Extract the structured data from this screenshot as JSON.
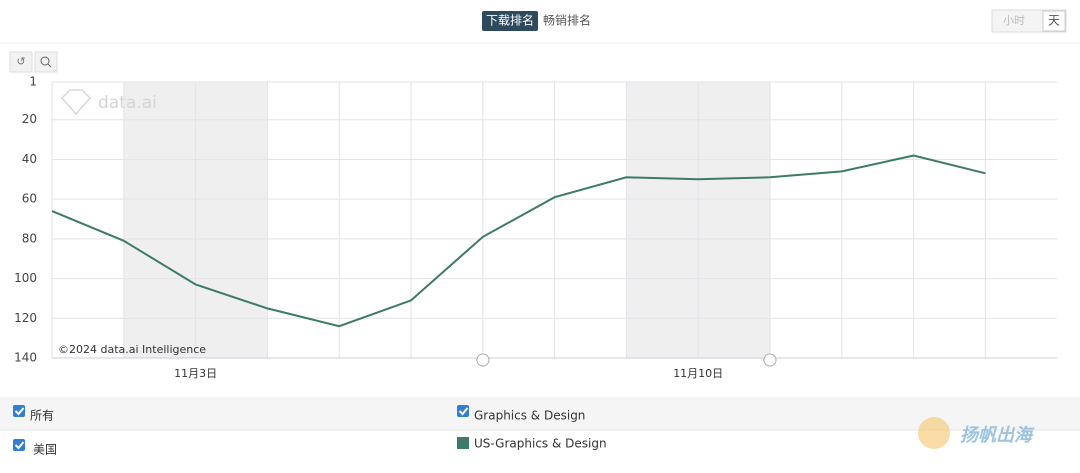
{
  "tabs": [
    "下载排名",
    "畅销排名"
  ],
  "granularity": [
    "小时",
    "天"
  ],
  "watermark": "data.ai",
  "filters": {
    "country_all": "所有",
    "country": "美国",
    "category_all": "Graphics & Design"
  },
  "brand": "扬帆出海",
  "chart_data": {
    "type": "line",
    "credit": "©2024 data.ai Intelligence",
    "categories": [
      null,
      null,
      "11月3日",
      null,
      null,
      null,
      null,
      null,
      null,
      "11月10日",
      null,
      null,
      null,
      null
    ],
    "series": [
      {
        "name": "US-Graphics & Design",
        "color": "#3d7a6a",
        "values": [
          66,
          81,
          103,
          115,
          124,
          111,
          79,
          59,
          49,
          50,
          49,
          46,
          38,
          47
        ]
      }
    ],
    "ylim": [
      1,
      140
    ],
    "y_reversed": true,
    "yticks": [
      1,
      20,
      40,
      60,
      80,
      100,
      120,
      140
    ],
    "grid": true
  }
}
